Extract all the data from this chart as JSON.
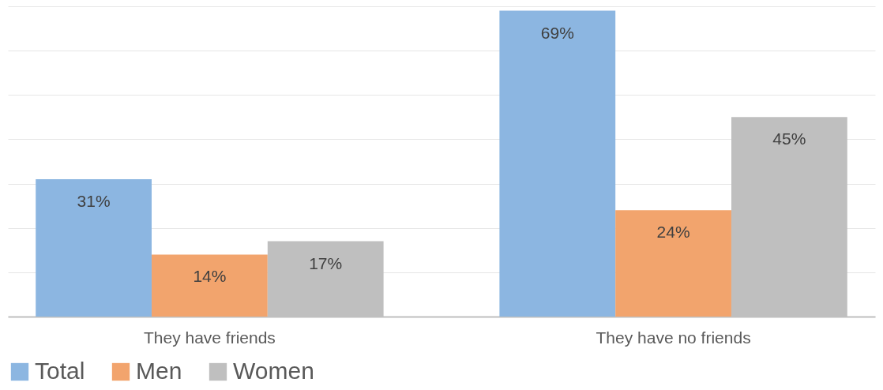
{
  "chart_data": {
    "type": "bar",
    "categories": [
      "They have friends",
      "They have no friends"
    ],
    "series": [
      {
        "name": "Total",
        "color": "#8cb6e1",
        "values": [
          31,
          69
        ],
        "value_labels": [
          "31%",
          "69%"
        ]
      },
      {
        "name": "Men",
        "color": "#f2a46d",
        "values": [
          14,
          24
        ],
        "value_labels": [
          "14%",
          "24%"
        ]
      },
      {
        "name": "Women",
        "color": "#bfbfbf",
        "values": [
          17,
          45
        ],
        "value_labels": [
          "17%",
          "45%"
        ]
      }
    ],
    "ylim": [
      0,
      70
    ],
    "yticks": [
      {
        "value": 0,
        "label": null
      },
      {
        "value": 10,
        "label": null
      },
      {
        "value": 20,
        "label": null
      },
      {
        "value": 30,
        "label": null
      },
      {
        "value": 40,
        "label": null
      },
      {
        "value": 50,
        "label": null
      },
      {
        "value": 60,
        "label": null
      },
      {
        "value": 70,
        "label": null
      }
    ],
    "grid": "y",
    "legend": "bottom",
    "tick_labels": "x"
  }
}
